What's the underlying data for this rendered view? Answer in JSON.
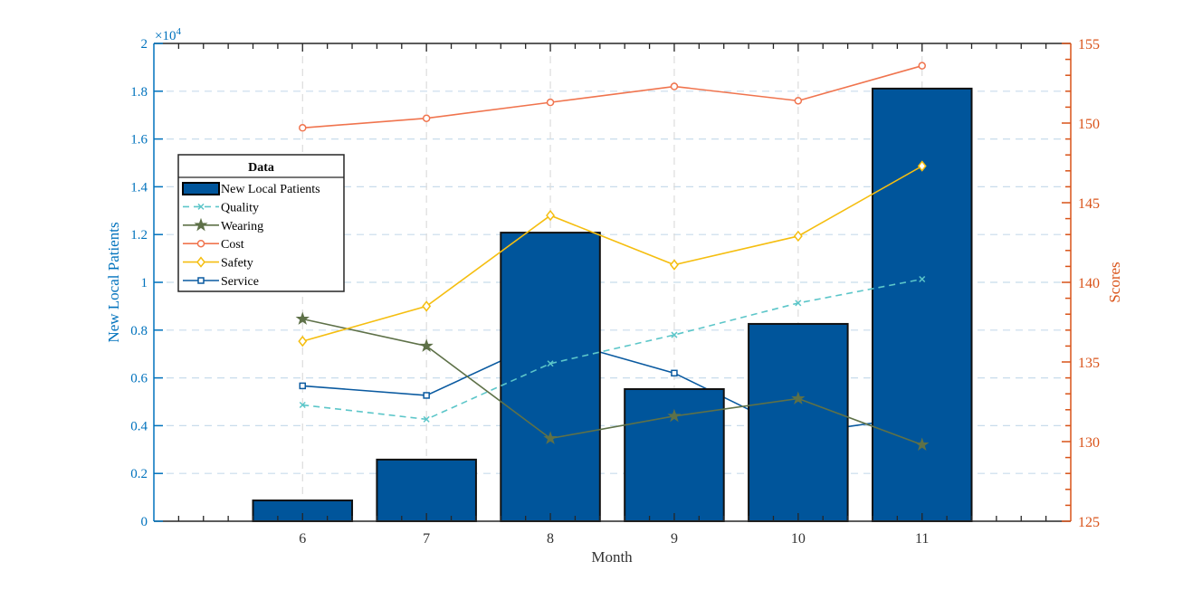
{
  "chart_data": {
    "type": "bar+line",
    "xlabel": "Month",
    "ylabel_left": "New Local Patients",
    "ylabel_right": "Scores",
    "left_exponent_label": "×10",
    "left_exponent": "4",
    "xlim": [
      4.8,
      12.2
    ],
    "ylim_left": [
      0,
      20000
    ],
    "ylim_right": [
      125,
      155
    ],
    "x_ticks": [
      "6",
      "7",
      "8",
      "9",
      "10",
      "11"
    ],
    "y_left_ticks": [
      "0",
      "0.2",
      "0.4",
      "0.6",
      "0.8",
      "1",
      "1.2",
      "1.4",
      "1.6",
      "1.8",
      "2"
    ],
    "y_right_ticks": [
      "125",
      "130",
      "135",
      "140",
      "145",
      "150",
      "155"
    ],
    "grid": true,
    "x": [
      6,
      7,
      8,
      9,
      10,
      11
    ],
    "bars": {
      "name": "New Local Patients",
      "axis": "left",
      "color": "#00559B",
      "values": [
        870,
        2580,
        12080,
        5530,
        8260,
        18110
      ]
    },
    "series": [
      {
        "name": "Quality",
        "axis": "right",
        "color": "#5CC6C9",
        "marker": "x",
        "dashed": true,
        "values": [
          132.3,
          131.4,
          134.9,
          136.7,
          138.7,
          140.2
        ]
      },
      {
        "name": "Wearing",
        "axis": "right",
        "color": "#5E7148",
        "marker": "star",
        "dashed": false,
        "values": [
          137.7,
          136.0,
          130.2,
          131.6,
          132.7,
          129.8
        ]
      },
      {
        "name": "Cost",
        "axis": "right",
        "color": "#F0744E",
        "marker": "circle",
        "dashed": false,
        "values": [
          149.7,
          150.3,
          151.3,
          152.3,
          151.4,
          153.6
        ]
      },
      {
        "name": "Safety",
        "axis": "right",
        "color": "#F5BE10",
        "marker": "diamond",
        "dashed": false,
        "values": [
          136.3,
          138.5,
          144.2,
          141.1,
          142.9,
          147.3
        ]
      },
      {
        "name": "Service",
        "axis": "right",
        "color": "#0A5AA0",
        "marker": "square",
        "dashed": false,
        "values": [
          133.5,
          132.9,
          136.5,
          134.3,
          130.5,
          131.6
        ]
      }
    ],
    "legend": {
      "title": "Data",
      "placement": "middle-left"
    },
    "colors": {
      "left_axis": "#0072BD",
      "right_axis": "#D95319",
      "grid": "#C8DCEB"
    }
  }
}
